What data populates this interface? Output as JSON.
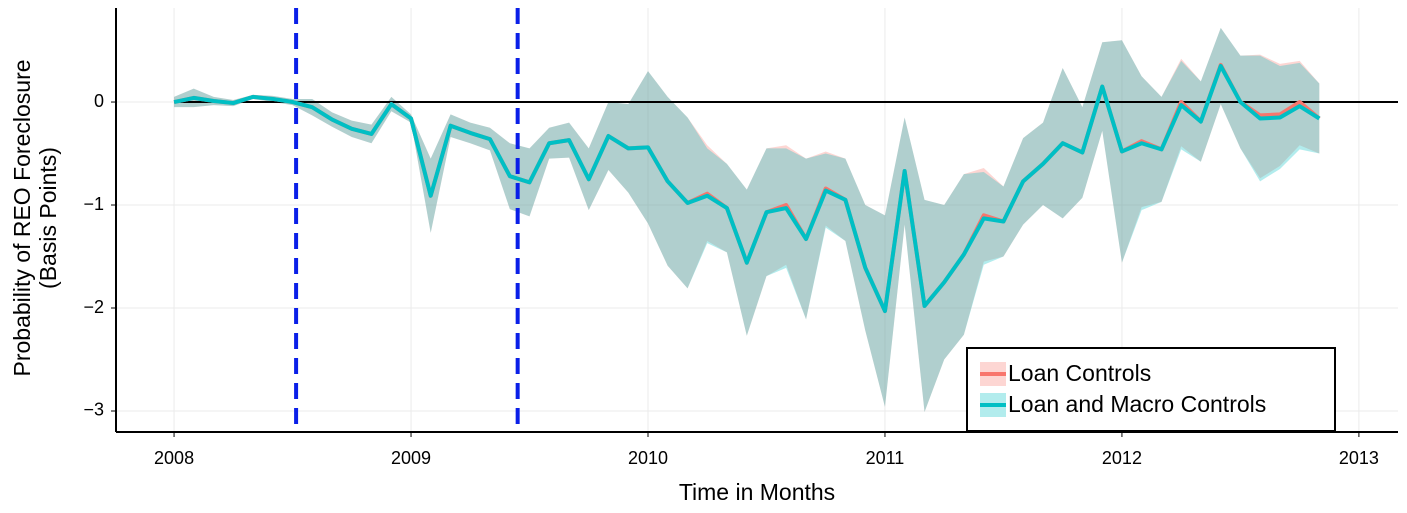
{
  "chart_data": {
    "type": "line",
    "xlabel": "Time in Months",
    "ylabel": [
      "Probability of REO Foreclosure",
      "(Basis Points)"
    ],
    "x": [
      2008,
      2008.083,
      2008.167,
      2008.25,
      2008.333,
      2008.417,
      2008.5,
      2008.583,
      2008.667,
      2008.75,
      2008.833,
      2008.917,
      2009,
      2009.083,
      2009.167,
      2009.25,
      2009.333,
      2009.417,
      2009.5,
      2009.583,
      2009.667,
      2009.75,
      2009.833,
      2009.917,
      2010,
      2010.083,
      2010.167,
      2010.25,
      2010.333,
      2010.417,
      2010.5,
      2010.583,
      2010.667,
      2010.75,
      2010.833,
      2010.917,
      2011,
      2011.083,
      2011.167,
      2011.25,
      2011.333,
      2011.417,
      2011.5,
      2011.583,
      2011.667,
      2011.75,
      2011.833,
      2011.917,
      2012,
      2012.083,
      2012.167,
      2012.25,
      2012.333,
      2012.417,
      2012.5,
      2012.583,
      2012.667,
      2012.75,
      2012.833
    ],
    "series": [
      {
        "name": "Loan Controls",
        "color": "#f8766d",
        "band_color": "#f8766d",
        "values": [
          0,
          0.04,
          0.01,
          -0.01,
          0.05,
          0.03,
          0,
          -0.05,
          -0.17,
          -0.26,
          -0.31,
          -0.02,
          -0.16,
          -0.91,
          -0.23,
          -0.3,
          -0.36,
          -0.72,
          -0.78,
          -0.4,
          -0.37,
          -0.75,
          -0.33,
          -0.45,
          -0.44,
          -0.77,
          -0.98,
          -0.89,
          -1.03,
          -1.56,
          -1.07,
          -1.0,
          -1.33,
          -0.84,
          -0.95,
          -1.61,
          -2.03,
          -0.67,
          -1.98,
          -1.75,
          -1.48,
          -1.1,
          -1.16,
          -0.77,
          -0.6,
          -0.4,
          -0.49,
          0.15,
          -0.48,
          -0.38,
          -0.46,
          0,
          -0.19,
          0.36,
          0,
          -0.13,
          -0.12,
          0,
          -0.16
        ],
        "upper": [
          0.05,
          0.13,
          0.05,
          0.02,
          0.07,
          0.06,
          0.03,
          0.03,
          -0.1,
          -0.18,
          -0.22,
          0.05,
          -0.12,
          -0.55,
          -0.12,
          -0.2,
          -0.25,
          -0.4,
          -0.45,
          -0.25,
          -0.2,
          -0.45,
          0.0,
          -0.02,
          0.3,
          0.05,
          -0.15,
          -0.42,
          -0.6,
          -0.85,
          -0.45,
          -0.42,
          -0.55,
          -0.48,
          -0.55,
          -1.0,
          -1.1,
          -0.15,
          -0.95,
          -1.0,
          -0.7,
          -0.64,
          -0.82,
          -0.35,
          -0.2,
          0.33,
          -0.05,
          0.58,
          0.6,
          0.25,
          0.05,
          0.42,
          0.2,
          0.72,
          0.45,
          0.46,
          0.37,
          0.4,
          0.18
        ],
        "lower": [
          -0.05,
          -0.05,
          -0.03,
          -0.04,
          0.03,
          0,
          -0.03,
          -0.13,
          -0.24,
          -0.34,
          -0.4,
          -0.09,
          -0.2,
          -1.27,
          -0.34,
          -0.4,
          -0.47,
          -1.04,
          -1.11,
          -0.55,
          -0.54,
          -1.05,
          -0.66,
          -0.88,
          -1.18,
          -1.59,
          -1.81,
          -1.35,
          -1.46,
          -2.27,
          -1.69,
          -1.58,
          -2.11,
          -1.2,
          -1.35,
          -2.22,
          -2.96,
          -1.19,
          -3.01,
          -2.5,
          -2.26,
          -1.55,
          -1.5,
          -1.19,
          -1.0,
          -1.13,
          -0.93,
          -0.28,
          -1.56,
          -1.02,
          -0.97,
          -0.43,
          -0.58,
          -0.02,
          -0.45,
          -0.74,
          -0.62,
          -0.42,
          -0.5
        ]
      },
      {
        "name": "Loan and Macro Controls",
        "color": "#00bfc4",
        "band_color": "#00bfc4",
        "values": [
          0,
          0.04,
          0.01,
          -0.01,
          0.05,
          0.03,
          0,
          -0.05,
          -0.17,
          -0.26,
          -0.31,
          -0.02,
          -0.16,
          -0.91,
          -0.23,
          -0.3,
          -0.36,
          -0.72,
          -0.78,
          -0.4,
          -0.37,
          -0.75,
          -0.33,
          -0.45,
          -0.44,
          -0.77,
          -0.98,
          -0.91,
          -1.03,
          -1.56,
          -1.07,
          -1.03,
          -1.33,
          -0.86,
          -0.95,
          -1.61,
          -2.03,
          -0.67,
          -1.98,
          -1.75,
          -1.48,
          -1.13,
          -1.16,
          -0.77,
          -0.6,
          -0.4,
          -0.49,
          0.15,
          -0.48,
          -0.4,
          -0.46,
          -0.03,
          -0.19,
          0.35,
          0,
          -0.16,
          -0.15,
          -0.04,
          -0.16
        ],
        "upper": [
          0.05,
          0.13,
          0.05,
          0.02,
          0.07,
          0.06,
          0.03,
          0.03,
          -0.1,
          -0.18,
          -0.22,
          0.05,
          -0.12,
          -0.55,
          -0.12,
          -0.2,
          -0.25,
          -0.4,
          -0.45,
          -0.25,
          -0.2,
          -0.45,
          0.0,
          -0.02,
          0.3,
          0.05,
          -0.15,
          -0.45,
          -0.6,
          -0.85,
          -0.45,
          -0.45,
          -0.55,
          -0.5,
          -0.55,
          -1.0,
          -1.1,
          -0.15,
          -0.95,
          -1.0,
          -0.7,
          -0.68,
          -0.82,
          -0.35,
          -0.2,
          0.33,
          -0.05,
          0.58,
          0.6,
          0.25,
          0.05,
          0.4,
          0.2,
          0.72,
          0.45,
          0.45,
          0.35,
          0.38,
          0.18
        ],
        "lower": [
          -0.05,
          -0.05,
          -0.03,
          -0.04,
          0.03,
          0,
          -0.03,
          -0.13,
          -0.24,
          -0.34,
          -0.4,
          -0.09,
          -0.2,
          -1.27,
          -0.34,
          -0.4,
          -0.47,
          -1.04,
          -1.11,
          -0.55,
          -0.54,
          -1.05,
          -0.66,
          -0.88,
          -1.18,
          -1.59,
          -1.81,
          -1.37,
          -1.46,
          -2.27,
          -1.69,
          -1.61,
          -2.11,
          -1.22,
          -1.35,
          -2.22,
          -2.96,
          -1.19,
          -3.01,
          -2.5,
          -2.26,
          -1.58,
          -1.5,
          -1.19,
          -1.0,
          -1.13,
          -0.93,
          -0.28,
          -1.56,
          -1.05,
          -0.97,
          -0.46,
          -0.58,
          -0.02,
          -0.45,
          -0.77,
          -0.65,
          -0.46,
          -0.5
        ]
      }
    ],
    "band_opacity": 0.3,
    "vlines": [
      2008.515,
      2009.45
    ],
    "vline_color": "#0a1fe8",
    "hline": 0,
    "xlim": [
      2007.755,
      2013.165
    ],
    "xticks": [
      2008,
      2009,
      2010,
      2011,
      2012,
      2013
    ],
    "ylim": [
      -3.204,
      0.913
    ],
    "yticks": [
      {
        "value": -3,
        "label": "−3"
      },
      {
        "value": -2,
        "label": "−2"
      },
      {
        "value": -1,
        "label": "−1"
      },
      0
    ],
    "grid": true,
    "legend": "bottom-right"
  }
}
